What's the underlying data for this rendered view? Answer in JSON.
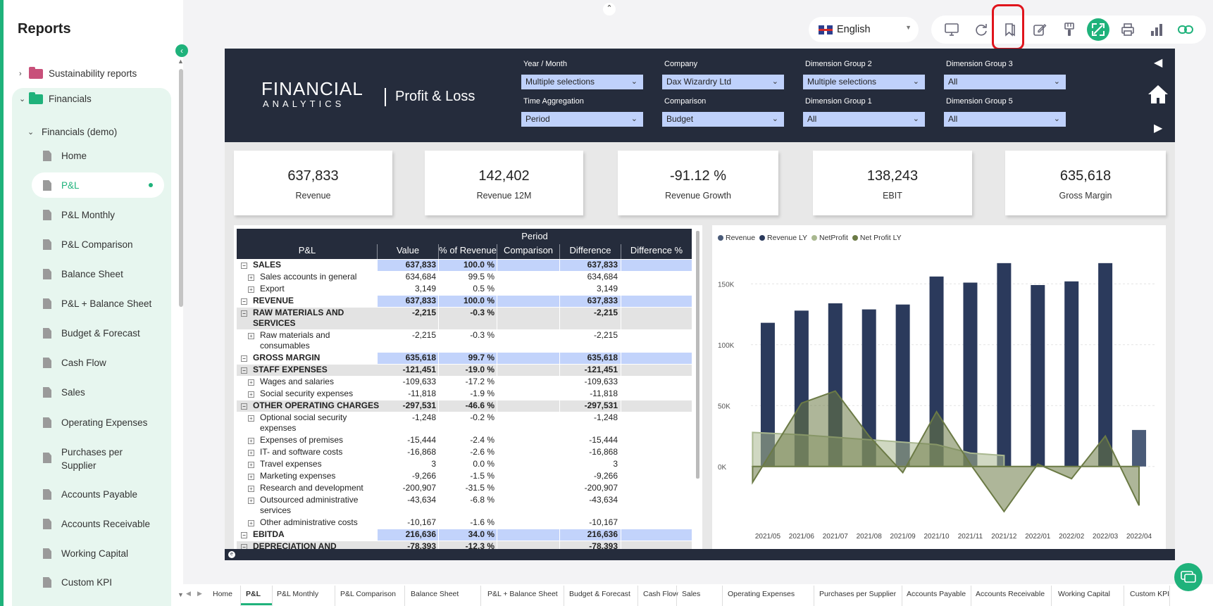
{
  "sidebar": {
    "title": "Reports",
    "items": [
      {
        "label": "Sustainability reports"
      },
      {
        "label": "Financials"
      },
      {
        "label": "Financials (demo)"
      },
      {
        "label": "Home"
      },
      {
        "label": "P&L"
      },
      {
        "label": "P&L Monthly"
      },
      {
        "label": "P&L Comparison"
      },
      {
        "label": "Balance Sheet"
      },
      {
        "label": "P&L + Balance Sheet"
      },
      {
        "label": "Budget & Forecast"
      },
      {
        "label": "Cash Flow"
      },
      {
        "label": "Sales"
      },
      {
        "label": "Operating Expenses"
      },
      {
        "label": "Purchases per"
      },
      {
        "label": "Supplier"
      },
      {
        "label": "Accounts Payable"
      },
      {
        "label": "Accounts Receivable"
      },
      {
        "label": "Working Capital"
      },
      {
        "label": "Custom KPI"
      }
    ]
  },
  "topbar": {
    "language": "English"
  },
  "report": {
    "logo_line1": "FINANCIAL",
    "logo_line2": "ANALYTICS",
    "title": "Profit & Loss",
    "slicers": [
      {
        "label": "Year / Month",
        "value": "Multiple selections"
      },
      {
        "label": "Company",
        "value": "Dax Wizardry Ltd"
      },
      {
        "label": "Dimension Group 2",
        "value": "Multiple selections"
      },
      {
        "label": "Dimension Group 3",
        "value": "All"
      },
      {
        "label": "Time Aggregation",
        "value": "Period"
      },
      {
        "label": "Comparison",
        "value": "Budget"
      },
      {
        "label": "Dimension Group 1",
        "value": "All"
      },
      {
        "label": "Dimension Group 5",
        "value": "All"
      }
    ],
    "kpis": [
      {
        "value": "637,833",
        "label": "Revenue"
      },
      {
        "value": "142,402",
        "label": "Revenue 12M"
      },
      {
        "value": "-91.12 %",
        "label": "Revenue Growth"
      },
      {
        "value": "138,243",
        "label": "EBIT"
      },
      {
        "value": "635,618",
        "label": "Gross Margin"
      }
    ],
    "table": {
      "group_header": "Period",
      "columns": [
        "P&L",
        "Value",
        "% of Revenue",
        "Comparison",
        "Difference",
        "Difference %"
      ],
      "rows": [
        {
          "label": "SALES",
          "value": "637,833",
          "pct": "100.0 %",
          "diff": "637,833",
          "level": 0,
          "hl": "blue"
        },
        {
          "label": "Sales accounts in general",
          "value": "634,684",
          "pct": "99.5 %",
          "diff": "634,684",
          "level": 1
        },
        {
          "label": "Export",
          "value": "3,149",
          "pct": "0.5 %",
          "diff": "3,149",
          "level": 1
        },
        {
          "label": "REVENUE",
          "value": "637,833",
          "pct": "100.0 %",
          "diff": "637,833",
          "level": 0,
          "hl": "blue"
        },
        {
          "label": "RAW MATERIALS AND",
          "label2": "SERVICES",
          "value": "-2,215",
          "pct": "-0.3 %",
          "diff": "-2,215",
          "level": 0,
          "hl": "grey"
        },
        {
          "label": "Raw materials and",
          "label2": "consumables",
          "value": "-2,215",
          "pct": "-0.3 %",
          "diff": "-2,215",
          "level": 1
        },
        {
          "label": "GROSS MARGIN",
          "value": "635,618",
          "pct": "99.7 %",
          "diff": "635,618",
          "level": 0,
          "hl": "blue"
        },
        {
          "label": "STAFF EXPENSES",
          "value": "-121,451",
          "pct": "-19.0 %",
          "diff": "-121,451",
          "level": 0,
          "hl": "grey"
        },
        {
          "label": "Wages and salaries",
          "value": "-109,633",
          "pct": "-17.2 %",
          "diff": "-109,633",
          "level": 1
        },
        {
          "label": "Social security expenses",
          "value": "-11,818",
          "pct": "-1.9 %",
          "diff": "-11,818",
          "level": 1
        },
        {
          "label": "OTHER OPERATING CHARGES",
          "value": "-297,531",
          "pct": "-46.6 %",
          "diff": "-297,531",
          "level": 0,
          "hl": "grey"
        },
        {
          "label": "Optional social security",
          "label2": "expenses",
          "value": "-1,248",
          "pct": "-0.2 %",
          "diff": "-1,248",
          "level": 1
        },
        {
          "label": "Expenses of premises",
          "value": "-15,444",
          "pct": "-2.4 %",
          "diff": "-15,444",
          "level": 1
        },
        {
          "label": "IT- and software costs",
          "value": "-16,868",
          "pct": "-2.6 %",
          "diff": "-16,868",
          "level": 1
        },
        {
          "label": "Travel expenses",
          "value": "3",
          "pct": "0.0 %",
          "diff": "3",
          "level": 1
        },
        {
          "label": "Marketing expenses",
          "value": "-9,266",
          "pct": "-1.5 %",
          "diff": "-9,266",
          "level": 1
        },
        {
          "label": "Research and development",
          "value": "-200,907",
          "pct": "-31.5 %",
          "diff": "-200,907",
          "level": 1
        },
        {
          "label": "Outsourced administrative",
          "label2": "services",
          "value": "-43,634",
          "pct": "-6.8 %",
          "diff": "-43,634",
          "level": 1
        },
        {
          "label": "Other administrative costs",
          "value": "-10,167",
          "pct": "-1.6 %",
          "diff": "-10,167",
          "level": 1
        },
        {
          "label": "EBITDA",
          "value": "216,636",
          "pct": "34.0 %",
          "diff": "216,636",
          "level": 0,
          "hl": "blue"
        },
        {
          "label": "DEPRECIATION AND",
          "value": "-78,393",
          "pct": "-12.3 %",
          "diff": "-78,393",
          "level": 0,
          "hl": "grey"
        }
      ]
    }
  },
  "chart_data": {
    "type": "bar",
    "categories": [
      "2021/05",
      "2021/06",
      "2021/07",
      "2021/08",
      "2021/09",
      "2021/10",
      "2021/11",
      "2021/12",
      "2022/01",
      "2022/02",
      "2022/03",
      "2022/04"
    ],
    "ylim": [
      -40000,
      175000
    ],
    "yticks": [
      {
        "v": 0,
        "l": "0K"
      },
      {
        "v": 50000,
        "l": "50K"
      },
      {
        "v": 100000,
        "l": "100K"
      },
      {
        "v": 150000,
        "l": "150K"
      }
    ],
    "series": [
      {
        "name": "Revenue",
        "kind": "bar",
        "color": "#4a5b78",
        "values": [
          null,
          null,
          null,
          null,
          null,
          null,
          null,
          null,
          null,
          null,
          null,
          30000
        ]
      },
      {
        "name": "Revenue LY",
        "kind": "bar",
        "color": "#2b3a5c",
        "values": [
          118000,
          128000,
          134000,
          129000,
          133000,
          156000,
          151000,
          167000,
          149000,
          152000,
          167000,
          null
        ]
      },
      {
        "name": "NetProfit",
        "kind": "area",
        "color": "#a9b890",
        "values": [
          28000,
          26000,
          24000,
          22000,
          20000,
          18000,
          11000,
          9000,
          null,
          null,
          null,
          null
        ]
      },
      {
        "name": "Net Profit LY",
        "kind": "area",
        "color": "#6b7a45",
        "values": [
          -13000,
          52000,
          62000,
          25000,
          -5000,
          45000,
          2000,
          -37000,
          2000,
          -10000,
          25000,
          -32000
        ]
      }
    ],
    "legend": [
      "Revenue",
      "Revenue LY",
      "NetProfit",
      "Net Profit LY"
    ]
  },
  "tabs": [
    "Home",
    "P&L",
    "P&L Monthly",
    "P&L Comparison",
    "Balance Sheet",
    "P&L + Balance Sheet",
    "Budget & Forecast",
    "Cash Flow",
    "Sales",
    "Operating Expenses",
    "Purchases per Supplier",
    "Accounts Payable",
    "Accounts Receivable",
    "Working Capital",
    "Custom KPI"
  ],
  "colors": {
    "accent": "#1fb27b",
    "header": "#252c3c",
    "slicer": "#bfd1fb",
    "highlight": "#e0141c"
  }
}
